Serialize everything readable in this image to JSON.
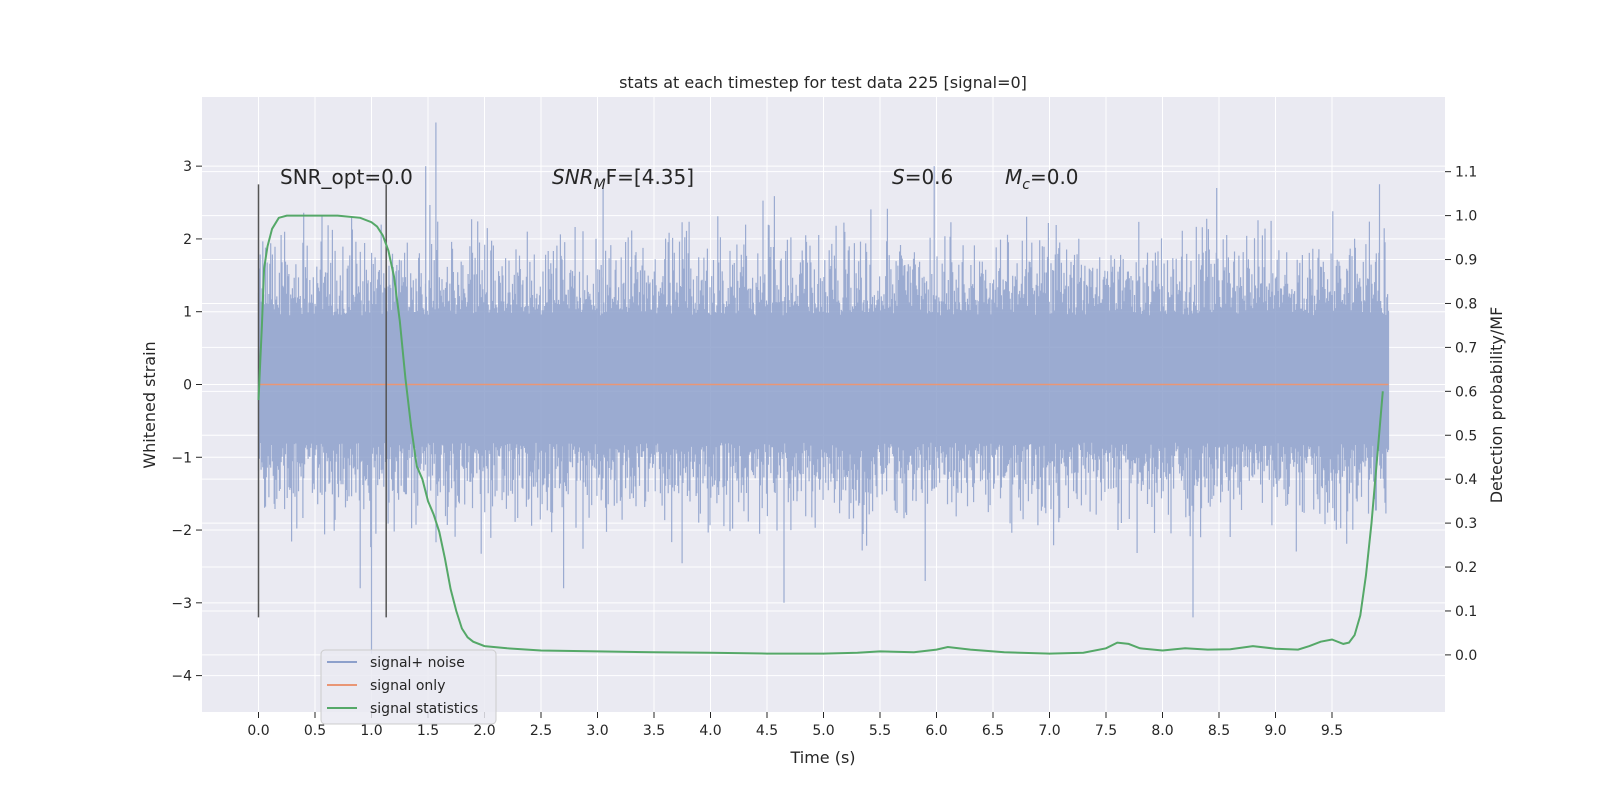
{
  "chart_data": {
    "type": "line",
    "title": "stats at each timestep for test data 225 [signal=0]",
    "xlabel": "Time (s)",
    "ylabel_left": "Whitened strain",
    "ylabel_right": "Detection probability/MF",
    "xlim": [
      -0.5,
      10.5
    ],
    "ylim_left": [
      -4.5,
      3.95
    ],
    "ylim_right": [
      -0.13,
      1.27
    ],
    "x_ticks": [
      0.0,
      0.5,
      1.0,
      1.5,
      2.0,
      2.5,
      3.0,
      3.5,
      4.0,
      4.5,
      5.0,
      5.5,
      6.0,
      6.5,
      7.0,
      7.5,
      8.0,
      8.5,
      9.0,
      9.5
    ],
    "x_tick_labels": [
      "0.0",
      "0.5",
      "1.0",
      "1.5",
      "2.0",
      "2.5",
      "3.0",
      "3.5",
      "4.0",
      "4.5",
      "5.0",
      "5.5",
      "6.0",
      "6.5",
      "7.0",
      "7.5",
      "8.0",
      "8.5",
      "9.0",
      "9.5"
    ],
    "y_left_ticks": [
      -4,
      -3,
      -2,
      -1,
      0,
      1,
      2,
      3
    ],
    "y_left_tick_labels": [
      "−4",
      "−3",
      "−2",
      "−1",
      "0",
      "1",
      "2",
      "3"
    ],
    "y_right_ticks": [
      0.0,
      0.1,
      0.2,
      0.3,
      0.4,
      0.5,
      0.6,
      0.7,
      0.8,
      0.9,
      1.0,
      1.1
    ],
    "y_right_tick_labels": [
      "0.0",
      "0.1",
      "0.2",
      "0.3",
      "0.4",
      "0.5",
      "0.6",
      "0.7",
      "0.8",
      "0.9",
      "1.0",
      "1.1"
    ],
    "grid": true,
    "legend_position": "lower-left",
    "colors": {
      "background": "#eaeaf2",
      "grid": "#ffffff",
      "noise": "#8da0cb",
      "signal": "#e99675",
      "statistics": "#55a868",
      "markers": "#555555"
    },
    "series": [
      {
        "name": "signal+ noise",
        "axis": "left",
        "time_range": [
          0.0,
          10.0
        ],
        "typical_range": [
          -0.8,
          0.95
        ],
        "notable_peaks": [
          {
            "x": 1.57,
            "y": 3.6
          },
          {
            "x": 1.48,
            "y": 3.0
          },
          {
            "x": 3.05,
            "y": 2.7
          },
          {
            "x": 5.98,
            "y": 3.0
          },
          {
            "x": 8.48,
            "y": 2.7
          },
          {
            "x": 9.92,
            "y": 2.75
          },
          {
            "x": 1.0,
            "y": -3.7
          },
          {
            "x": 0.9,
            "y": -2.8
          },
          {
            "x": 2.7,
            "y": -2.8
          },
          {
            "x": 4.65,
            "y": -3.0
          },
          {
            "x": 5.9,
            "y": -2.7
          },
          {
            "x": 8.27,
            "y": -3.2
          }
        ]
      },
      {
        "name": "signal only",
        "axis": "left",
        "x": [
          0.0,
          10.0
        ],
        "y": [
          0.0,
          0.0
        ]
      },
      {
        "name": "signal statistics",
        "axis": "right",
        "x": [
          0.0,
          0.03,
          0.05,
          0.08,
          0.12,
          0.18,
          0.25,
          0.35,
          0.5,
          0.7,
          0.9,
          1.0,
          1.05,
          1.1,
          1.15,
          1.2,
          1.25,
          1.3,
          1.35,
          1.4,
          1.45,
          1.5,
          1.55,
          1.6,
          1.65,
          1.7,
          1.75,
          1.8,
          1.85,
          1.9,
          2.0,
          2.2,
          2.5,
          3.0,
          3.5,
          4.0,
          4.5,
          5.0,
          5.3,
          5.5,
          5.8,
          6.0,
          6.1,
          6.3,
          6.6,
          7.0,
          7.3,
          7.5,
          7.6,
          7.7,
          7.8,
          8.0,
          8.2,
          8.4,
          8.6,
          8.8,
          9.0,
          9.2,
          9.3,
          9.4,
          9.5,
          9.6,
          9.65,
          9.7,
          9.75,
          9.8,
          9.85,
          9.9,
          9.95
        ],
        "y": [
          0.58,
          0.75,
          0.88,
          0.93,
          0.97,
          0.995,
          1.0,
          1.0,
          1.0,
          1.0,
          0.995,
          0.985,
          0.975,
          0.955,
          0.92,
          0.86,
          0.76,
          0.63,
          0.52,
          0.43,
          0.4,
          0.35,
          0.32,
          0.28,
          0.22,
          0.15,
          0.1,
          0.06,
          0.04,
          0.03,
          0.02,
          0.015,
          0.01,
          0.008,
          0.006,
          0.005,
          0.003,
          0.003,
          0.005,
          0.008,
          0.006,
          0.012,
          0.018,
          0.012,
          0.006,
          0.003,
          0.005,
          0.015,
          0.028,
          0.025,
          0.015,
          0.01,
          0.015,
          0.012,
          0.013,
          0.02,
          0.014,
          0.012,
          0.02,
          0.03,
          0.035,
          0.025,
          0.028,
          0.045,
          0.09,
          0.18,
          0.3,
          0.45,
          0.6
        ]
      }
    ],
    "vertical_markers": [
      {
        "x": 0.0,
        "y_range": [
          -3.2,
          2.75
        ]
      },
      {
        "x": 1.13,
        "y_range": [
          -3.2,
          2.75
        ]
      }
    ],
    "annotations": [
      {
        "id": "snr_opt",
        "text": "SNR_opt=0.0"
      },
      {
        "id": "snr_mf",
        "text": "SNR",
        "sub": "M",
        "tail": "F=[4.35]"
      },
      {
        "id": "s_val",
        "text": "S",
        "tail": "=0.6"
      },
      {
        "id": "mc_val",
        "text": "M",
        "sub": "c",
        "tail": "=0.0"
      }
    ]
  }
}
